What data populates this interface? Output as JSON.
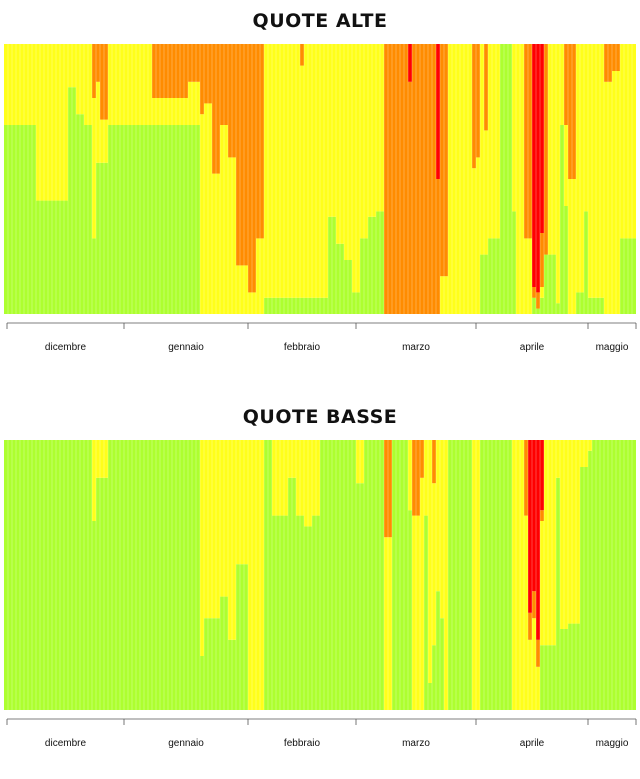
{
  "colors": {
    "green": "#adff2f",
    "yellow": "#ffff1a",
    "orange": "#ff8c00",
    "red": "#ff0000"
  },
  "chart_data": [
    {
      "type": "bar",
      "title": "QUOTE ALTE",
      "stacking": "stacked-columns-100-percent",
      "n_days": 158,
      "ylim": [
        0,
        1
      ],
      "months": [
        "dicembre",
        "gennaio",
        "febbraio",
        "marzo",
        "aprile",
        "maggio"
      ],
      "month_boundaries_day_index": [
        0,
        30,
        61,
        88,
        118,
        146,
        157
      ],
      "segments": [
        {
          "start": 0,
          "end": 7,
          "green": 0.7,
          "yellow": 0.3,
          "orange": 0,
          "red": 0
        },
        {
          "start": 8,
          "end": 15,
          "green": 0.42,
          "yellow": 0.58,
          "orange": 0,
          "red": 0
        },
        {
          "start": 16,
          "end": 17,
          "green": 0.84,
          "yellow": 0.16,
          "orange": 0,
          "red": 0
        },
        {
          "start": 18,
          "end": 19,
          "green": 0.74,
          "yellow": 0.26,
          "orange": 0,
          "red": 0
        },
        {
          "start": 20,
          "end": 21,
          "green": 0.7,
          "yellow": 0.3,
          "orange": 0,
          "red": 0
        },
        {
          "start": 22,
          "end": 22,
          "green": 0.28,
          "yellow": 0.52,
          "orange": 0.2,
          "red": 0
        },
        {
          "start": 23,
          "end": 23,
          "green": 0.56,
          "yellow": 0.3,
          "orange": 0.14,
          "red": 0
        },
        {
          "start": 24,
          "end": 25,
          "green": 0.56,
          "yellow": 0.16,
          "orange": 0.28,
          "red": 0
        },
        {
          "start": 26,
          "end": 36,
          "green": 0.7,
          "yellow": 0.3,
          "orange": 0,
          "red": 0
        },
        {
          "start": 37,
          "end": 45,
          "green": 0.7,
          "yellow": 0.1,
          "orange": 0.2,
          "red": 0
        },
        {
          "start": 46,
          "end": 48,
          "green": 0.7,
          "yellow": 0.16,
          "orange": 0.14,
          "red": 0
        },
        {
          "start": 49,
          "end": 49,
          "green": 0,
          "yellow": 0.74,
          "orange": 0.26,
          "red": 0
        },
        {
          "start": 50,
          "end": 51,
          "green": 0,
          "yellow": 0.78,
          "orange": 0.22,
          "red": 0
        },
        {
          "start": 52,
          "end": 53,
          "green": 0,
          "yellow": 0.52,
          "orange": 0.48,
          "red": 0
        },
        {
          "start": 54,
          "end": 55,
          "green": 0,
          "yellow": 0.7,
          "orange": 0.3,
          "red": 0
        },
        {
          "start": 56,
          "end": 57,
          "green": 0,
          "yellow": 0.58,
          "orange": 0.42,
          "red": 0
        },
        {
          "start": 58,
          "end": 60,
          "green": 0,
          "yellow": 0.18,
          "orange": 0.82,
          "red": 0
        },
        {
          "start": 61,
          "end": 62,
          "green": 0,
          "yellow": 0.08,
          "orange": 0.92,
          "red": 0
        },
        {
          "start": 63,
          "end": 64,
          "green": 0,
          "yellow": 0.28,
          "orange": 0.72,
          "red": 0
        },
        {
          "start": 65,
          "end": 73,
          "green": 0.06,
          "yellow": 0.94,
          "orange": 0,
          "red": 0
        },
        {
          "start": 74,
          "end": 74,
          "green": 0.06,
          "yellow": 0.86,
          "orange": 0.08,
          "red": 0
        },
        {
          "start": 75,
          "end": 80,
          "green": 0.06,
          "yellow": 0.94,
          "orange": 0,
          "red": 0
        },
        {
          "start": 81,
          "end": 82,
          "green": 0.36,
          "yellow": 0.64,
          "orange": 0,
          "red": 0
        },
        {
          "start": 83,
          "end": 84,
          "green": 0.26,
          "yellow": 0.74,
          "orange": 0,
          "red": 0
        },
        {
          "start": 85,
          "end": 86,
          "green": 0.2,
          "yellow": 0.8,
          "orange": 0,
          "red": 0
        },
        {
          "start": 87,
          "end": 88,
          "green": 0.08,
          "yellow": 0.92,
          "orange": 0,
          "red": 0
        },
        {
          "start": 89,
          "end": 90,
          "green": 0.28,
          "yellow": 0.72,
          "orange": 0,
          "red": 0
        },
        {
          "start": 91,
          "end": 92,
          "green": 0.36,
          "yellow": 0.64,
          "orange": 0,
          "red": 0
        },
        {
          "start": 93,
          "end": 94,
          "green": 0.38,
          "yellow": 0.62,
          "orange": 0,
          "red": 0
        },
        {
          "start": 95,
          "end": 100,
          "green": 0,
          "yellow": 0,
          "orange": 1.0,
          "red": 0
        },
        {
          "start": 101,
          "end": 101,
          "green": 0,
          "yellow": 0,
          "orange": 0.86,
          "red": 0.14
        },
        {
          "start": 102,
          "end": 107,
          "green": 0,
          "yellow": 0,
          "orange": 1.0,
          "red": 0
        },
        {
          "start": 108,
          "end": 108,
          "green": 0,
          "yellow": 0,
          "orange": 0.5,
          "red": 0.5
        },
        {
          "start": 109,
          "end": 110,
          "green": 0,
          "yellow": 0.14,
          "orange": 0.86,
          "red": 0
        },
        {
          "start": 111,
          "end": 116,
          "green": 0,
          "yellow": 1.0,
          "orange": 0,
          "red": 0
        },
        {
          "start": 117,
          "end": 117,
          "green": 0,
          "yellow": 0.54,
          "orange": 0.46,
          "red": 0
        },
        {
          "start": 118,
          "end": 118,
          "green": 0,
          "yellow": 0.58,
          "orange": 0.42,
          "red": 0
        },
        {
          "start": 119,
          "end": 119,
          "green": 0.22,
          "yellow": 0.78,
          "orange": 0,
          "red": 0
        },
        {
          "start": 120,
          "end": 120,
          "green": 0.22,
          "yellow": 0.46,
          "orange": 0.32,
          "red": 0
        },
        {
          "start": 121,
          "end": 123,
          "green": 0.28,
          "yellow": 0.72,
          "orange": 0,
          "red": 0
        },
        {
          "start": 124,
          "end": 126,
          "green": 1.0,
          "yellow": 0,
          "orange": 0,
          "red": 0
        },
        {
          "start": 127,
          "end": 127,
          "green": 0.38,
          "yellow": 0.62,
          "orange": 0,
          "red": 0
        },
        {
          "start": 128,
          "end": 129,
          "green": 0,
          "yellow": 1.0,
          "orange": 0,
          "red": 0
        },
        {
          "start": 130,
          "end": 131,
          "green": 0,
          "yellow": 0.28,
          "orange": 0.72,
          "red": 0
        },
        {
          "start": 132,
          "end": 132,
          "green": 0.06,
          "yellow": 0,
          "orange": 0.04,
          "red": 0.9
        },
        {
          "start": 133,
          "end": 133,
          "green": 0.02,
          "yellow": 0,
          "orange": 0.06,
          "red": 0.92
        },
        {
          "start": 134,
          "end": 134,
          "green": 0.06,
          "yellow": 0.04,
          "orange": 0.2,
          "red": 0.7
        },
        {
          "start": 135,
          "end": 135,
          "green": 0.22,
          "yellow": 0,
          "orange": 0.78,
          "red": 0
        },
        {
          "start": 136,
          "end": 137,
          "green": 0.22,
          "yellow": 0.78,
          "orange": 0,
          "red": 0
        },
        {
          "start": 138,
          "end": 138,
          "green": 0.04,
          "yellow": 0.96,
          "orange": 0,
          "red": 0
        },
        {
          "start": 139,
          "end": 139,
          "green": 0.7,
          "yellow": 0.3,
          "orange": 0,
          "red": 0
        },
        {
          "start": 140,
          "end": 140,
          "green": 0.4,
          "yellow": 0.3,
          "orange": 0.3,
          "red": 0
        },
        {
          "start": 141,
          "end": 142,
          "green": 0,
          "yellow": 0.5,
          "orange": 0.5,
          "red": 0
        },
        {
          "start": 143,
          "end": 144,
          "green": 0.08,
          "yellow": 0.92,
          "orange": 0,
          "red": 0
        },
        {
          "start": 145,
          "end": 145,
          "green": 0.38,
          "yellow": 0.62,
          "orange": 0,
          "red": 0
        },
        {
          "start": 146,
          "end": 146,
          "green": 0.06,
          "yellow": 0.94,
          "orange": 0,
          "red": 0
        },
        {
          "start": 147,
          "end": 147,
          "green": 0.06,
          "yellow": 0.94,
          "orange": 0,
          "red": 0
        },
        {
          "start": 148,
          "end": 149,
          "green": 0.06,
          "yellow": 0.94,
          "orange": 0,
          "red": 0
        },
        {
          "start": 150,
          "end": 151,
          "green": 0,
          "yellow": 0.86,
          "orange": 0.14,
          "red": 0
        },
        {
          "start": 152,
          "end": 153,
          "green": 0,
          "yellow": 0.9,
          "orange": 0.1,
          "red": 0
        },
        {
          "start": 154,
          "end": 157,
          "green": 0.28,
          "yellow": 0.72,
          "orange": 0,
          "red": 0
        }
      ]
    },
    {
      "type": "bar",
      "title": "QUOTE BASSE",
      "stacking": "stacked-columns-100-percent",
      "n_days": 158,
      "ylim": [
        0,
        1
      ],
      "months": [
        "dicembre",
        "gennaio",
        "febbraio",
        "marzo",
        "aprile",
        "maggio"
      ],
      "month_boundaries_day_index": [
        0,
        30,
        61,
        88,
        118,
        146,
        157
      ],
      "segments": [
        {
          "start": 0,
          "end": 7,
          "green": 1.0,
          "yellow": 0,
          "orange": 0,
          "red": 0
        },
        {
          "start": 8,
          "end": 21,
          "green": 1.0,
          "yellow": 0,
          "orange": 0,
          "red": 0
        },
        {
          "start": 22,
          "end": 22,
          "green": 0.7,
          "yellow": 0.3,
          "orange": 0,
          "red": 0
        },
        {
          "start": 23,
          "end": 25,
          "green": 0.86,
          "yellow": 0.14,
          "orange": 0,
          "red": 0
        },
        {
          "start": 26,
          "end": 48,
          "green": 1.0,
          "yellow": 0,
          "orange": 0,
          "red": 0
        },
        {
          "start": 49,
          "end": 49,
          "green": 0.2,
          "yellow": 0.8,
          "orange": 0,
          "red": 0
        },
        {
          "start": 50,
          "end": 53,
          "green": 0.34,
          "yellow": 0.66,
          "orange": 0,
          "red": 0
        },
        {
          "start": 54,
          "end": 55,
          "green": 0.42,
          "yellow": 0.58,
          "orange": 0,
          "red": 0
        },
        {
          "start": 56,
          "end": 57,
          "green": 0.26,
          "yellow": 0.74,
          "orange": 0,
          "red": 0
        },
        {
          "start": 58,
          "end": 60,
          "green": 0.54,
          "yellow": 0.46,
          "orange": 0,
          "red": 0
        },
        {
          "start": 61,
          "end": 64,
          "green": 0,
          "yellow": 1.0,
          "orange": 0,
          "red": 0
        },
        {
          "start": 65,
          "end": 66,
          "green": 1.0,
          "yellow": 0,
          "orange": 0,
          "red": 0
        },
        {
          "start": 67,
          "end": 68,
          "green": 0.72,
          "yellow": 0.28,
          "orange": 0,
          "red": 0
        },
        {
          "start": 69,
          "end": 70,
          "green": 0.72,
          "yellow": 0.28,
          "orange": 0,
          "red": 0
        },
        {
          "start": 71,
          "end": 72,
          "green": 0.86,
          "yellow": 0.14,
          "orange": 0,
          "red": 0
        },
        {
          "start": 73,
          "end": 74,
          "green": 0.72,
          "yellow": 0.28,
          "orange": 0,
          "red": 0
        },
        {
          "start": 75,
          "end": 76,
          "green": 0.68,
          "yellow": 0.32,
          "orange": 0,
          "red": 0
        },
        {
          "start": 77,
          "end": 78,
          "green": 0.72,
          "yellow": 0.28,
          "orange": 0,
          "red": 0
        },
        {
          "start": 79,
          "end": 87,
          "green": 1.0,
          "yellow": 0,
          "orange": 0,
          "red": 0
        },
        {
          "start": 88,
          "end": 89,
          "green": 0.84,
          "yellow": 0.16,
          "orange": 0,
          "red": 0
        },
        {
          "start": 90,
          "end": 94,
          "green": 1.0,
          "yellow": 0,
          "orange": 0,
          "red": 0
        },
        {
          "start": 95,
          "end": 96,
          "green": 0,
          "yellow": 0.64,
          "orange": 0.36,
          "red": 0
        },
        {
          "start": 97,
          "end": 100,
          "green": 1.0,
          "yellow": 0,
          "orange": 0,
          "red": 0
        },
        {
          "start": 101,
          "end": 101,
          "green": 0.74,
          "yellow": 0.26,
          "orange": 0,
          "red": 0
        },
        {
          "start": 102,
          "end": 103,
          "green": 0,
          "yellow": 0.72,
          "orange": 0.28,
          "red": 0
        },
        {
          "start": 104,
          "end": 104,
          "green": 0,
          "yellow": 0.86,
          "orange": 0.14,
          "red": 0
        },
        {
          "start": 105,
          "end": 105,
          "green": 0.72,
          "yellow": 0.28,
          "orange": 0,
          "red": 0
        },
        {
          "start": 106,
          "end": 106,
          "green": 0.1,
          "yellow": 0.9,
          "orange": 0,
          "red": 0
        },
        {
          "start": 107,
          "end": 107,
          "green": 0.24,
          "yellow": 0.6,
          "orange": 0.16,
          "red": 0
        },
        {
          "start": 108,
          "end": 108,
          "green": 0.44,
          "yellow": 0.56,
          "orange": 0,
          "red": 0
        },
        {
          "start": 109,
          "end": 109,
          "green": 0.34,
          "yellow": 0.66,
          "orange": 0,
          "red": 0
        },
        {
          "start": 110,
          "end": 110,
          "green": 0,
          "yellow": 1.0,
          "orange": 0,
          "red": 0
        },
        {
          "start": 111,
          "end": 116,
          "green": 1.0,
          "yellow": 0,
          "orange": 0,
          "red": 0
        },
        {
          "start": 117,
          "end": 118,
          "green": 0,
          "yellow": 1.0,
          "orange": 0,
          "red": 0
        },
        {
          "start": 119,
          "end": 126,
          "green": 1.0,
          "yellow": 0,
          "orange": 0,
          "red": 0
        },
        {
          "start": 127,
          "end": 127,
          "green": 0,
          "yellow": 1.0,
          "orange": 0,
          "red": 0
        },
        {
          "start": 128,
          "end": 129,
          "green": 0,
          "yellow": 1.0,
          "orange": 0,
          "red": 0
        },
        {
          "start": 130,
          "end": 130,
          "green": 0,
          "yellow": 0.72,
          "orange": 0.28,
          "red": 0
        },
        {
          "start": 131,
          "end": 131,
          "green": 0,
          "yellow": 0.26,
          "orange": 0.1,
          "red": 0.64
        },
        {
          "start": 132,
          "end": 132,
          "green": 0,
          "yellow": 0.34,
          "orange": 0.1,
          "red": 0.56
        },
        {
          "start": 133,
          "end": 133,
          "green": 0,
          "yellow": 0.16,
          "orange": 0.1,
          "red": 0.74
        },
        {
          "start": 134,
          "end": 134,
          "green": 0.24,
          "yellow": 0.46,
          "orange": 0.04,
          "red": 0.26
        },
        {
          "start": 135,
          "end": 137,
          "green": 0.24,
          "yellow": 0.76,
          "orange": 0,
          "red": 0
        },
        {
          "start": 138,
          "end": 138,
          "green": 0.86,
          "yellow": 0.14,
          "orange": 0,
          "red": 0
        },
        {
          "start": 139,
          "end": 140,
          "green": 0.3,
          "yellow": 0.7,
          "orange": 0,
          "red": 0
        },
        {
          "start": 141,
          "end": 143,
          "green": 0.32,
          "yellow": 0.68,
          "orange": 0,
          "red": 0
        },
        {
          "start": 144,
          "end": 145,
          "green": 0.9,
          "yellow": 0.1,
          "orange": 0,
          "red": 0
        },
        {
          "start": 146,
          "end": 146,
          "green": 0.96,
          "yellow": 0.04,
          "orange": 0,
          "red": 0
        },
        {
          "start": 147,
          "end": 157,
          "green": 1.0,
          "yellow": 0,
          "orange": 0,
          "red": 0
        }
      ]
    }
  ]
}
